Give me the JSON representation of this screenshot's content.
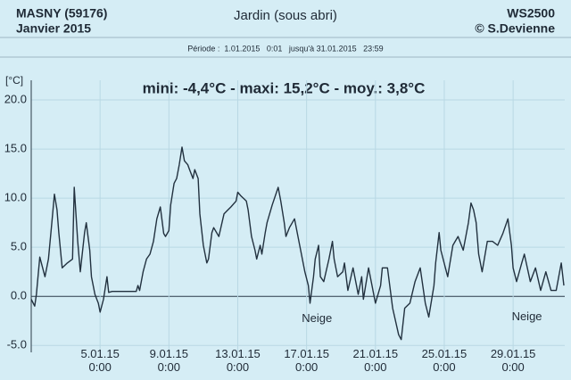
{
  "chart_data": {
    "type": "line",
    "station": "MASNY (59176)",
    "month": "Janvier  2015",
    "title": "Jardin (sous abri)",
    "device": "WS2500",
    "author": "© S.Devienne",
    "period": "Période :  1.01.2015   0:01   jusqu'à 31.01.2015   23:59",
    "stats": "mini:  -4,4°C - maxi: 15,2°C - moy.: 3,8°C",
    "ylabel": "[°C]",
    "annotations": [
      {
        "text": "Neige",
        "x": 17.6,
        "y": -2.3
      },
      {
        "text": "Neige",
        "x": 29.8,
        "y": -2.1
      }
    ],
    "xlim": [
      1,
      32
    ],
    "ylim": [
      -5.7,
      22
    ],
    "xticks": [
      {
        "value": 5,
        "label": "5.01.15 0:00"
      },
      {
        "value": 9,
        "label": "9.01.15 0:00"
      },
      {
        "value": 13,
        "label": "13.01.15 0:00"
      },
      {
        "value": 17,
        "label": "17.01.15 0:00"
      },
      {
        "value": 21,
        "label": "21.01.15 0:00"
      },
      {
        "value": 25,
        "label": "25.01.15 0:00"
      },
      {
        "value": 29,
        "label": "29.01.15 0:00"
      }
    ],
    "yticks": [
      {
        "value": 20,
        "label": "20.0"
      },
      {
        "value": 15,
        "label": "15.0"
      },
      {
        "value": 10,
        "label": "10.0"
      },
      {
        "value": 5,
        "label": "5.0"
      },
      {
        "value": 0,
        "label": "0.0"
      },
      {
        "value": -5,
        "label": "-5.0"
      }
    ],
    "grid": true,
    "color": "#22313f",
    "x": [
      1.0,
      1.2,
      1.3,
      1.5,
      1.8,
      2.0,
      2.2,
      2.35,
      2.5,
      2.6,
      2.8,
      3.1,
      3.4,
      3.5,
      3.7,
      3.85,
      4.1,
      4.2,
      4.4,
      4.5,
      4.7,
      4.9,
      5.0,
      5.2,
      5.4,
      5.5,
      5.7,
      7.1,
      7.2,
      7.3,
      7.5,
      7.7,
      7.9,
      8.1,
      8.3,
      8.5,
      8.7,
      8.8,
      9.0,
      9.1,
      9.3,
      9.45,
      9.6,
      9.76,
      9.9,
      10.1,
      10.2,
      10.4,
      10.5,
      10.7,
      10.8,
      11.0,
      11.2,
      11.3,
      11.5,
      11.6,
      11.9,
      12.2,
      12.6,
      12.9,
      13.0,
      13.2,
      13.5,
      13.6,
      13.8,
      14.0,
      14.1,
      14.3,
      14.4,
      14.6,
      14.7,
      15.0,
      15.35,
      15.5,
      15.7,
      15.8,
      16.0,
      16.3,
      16.6,
      16.9,
      17.1,
      17.2,
      17.4,
      17.5,
      17.7,
      17.8,
      18.0,
      18.3,
      18.5,
      18.6,
      18.8,
      19.1,
      19.2,
      19.4,
      19.7,
      20.0,
      20.2,
      20.3,
      20.6,
      21.0,
      21.3,
      21.4,
      21.7,
      22.0,
      22.35,
      22.5,
      22.7,
      23.0,
      23.3,
      23.6,
      23.9,
      24.1,
      24.4,
      24.5,
      24.7,
      24.8,
      25.2,
      25.5,
      25.8,
      26.1,
      26.4,
      26.55,
      26.7,
      26.85,
      27.0,
      27.2,
      27.5,
      27.8,
      28.1,
      28.4,
      28.7,
      28.9,
      29.0,
      29.2,
      29.5,
      29.65,
      30.0,
      30.3,
      30.6,
      30.9,
      31.2,
      31.5,
      31.8,
      31.95
    ],
    "values": [
      -0.3,
      -1.0,
      0.2,
      4.0,
      2.0,
      3.8,
      7.5,
      10.4,
      8.8,
      6.5,
      2.9,
      3.4,
      3.8,
      11.1,
      5.6,
      2.5,
      6.5,
      7.5,
      4.7,
      2.0,
      0.2,
      -0.7,
      -1.6,
      -0.3,
      2.0,
      0.4,
      0.5,
      0.5,
      1.1,
      0.6,
      2.5,
      3.8,
      4.3,
      5.6,
      7.9,
      9.1,
      6.4,
      6.1,
      6.7,
      9.3,
      11.5,
      12.0,
      13.4,
      15.2,
      13.8,
      13.4,
      12.9,
      12.0,
      12.9,
      12.0,
      8.4,
      5.2,
      3.4,
      3.8,
      6.5,
      7.0,
      6.1,
      8.4,
      9.1,
      9.7,
      10.6,
      10.2,
      9.7,
      8.8,
      6.1,
      4.7,
      3.8,
      5.2,
      4.3,
      6.5,
      7.5,
      9.3,
      11.1,
      9.7,
      7.5,
      6.1,
      7.0,
      7.9,
      5.2,
      2.5,
      1.1,
      -0.7,
      2.0,
      3.8,
      5.2,
      2.0,
      1.5,
      3.8,
      5.6,
      3.8,
      2.0,
      2.5,
      3.4,
      0.6,
      2.9,
      0.2,
      2.0,
      -0.3,
      2.9,
      -0.7,
      1.1,
      2.9,
      2.9,
      -1.2,
      -3.9,
      -4.4,
      -1.2,
      -0.7,
      1.5,
      2.9,
      -0.7,
      -2.1,
      1.1,
      3.4,
      6.5,
      4.7,
      2.0,
      5.2,
      6.1,
      4.7,
      7.5,
      9.5,
      8.8,
      7.5,
      4.3,
      2.5,
      5.6,
      5.6,
      5.2,
      6.4,
      7.9,
      5.2,
      2.9,
      1.5,
      3.4,
      4.3,
      1.5,
      2.9,
      0.6,
      2.5,
      0.6,
      0.6,
      3.4,
      1.1
    ]
  }
}
